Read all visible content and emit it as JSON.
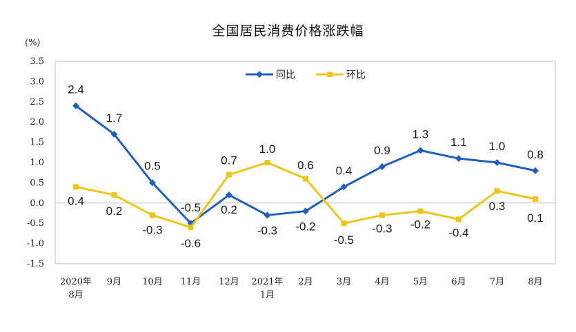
{
  "chart_data": {
    "type": "line",
    "title": "全国居民消费价格涨跌幅",
    "unit": "(%)",
    "categories": [
      [
        "2020年",
        "8月"
      ],
      [
        "9月"
      ],
      [
        "10月"
      ],
      [
        "11月"
      ],
      [
        "12月"
      ],
      [
        "2021年",
        "1月"
      ],
      [
        "2月"
      ],
      [
        "3月"
      ],
      [
        "4月"
      ],
      [
        "5月"
      ],
      [
        "6月"
      ],
      [
        "7月"
      ],
      [
        "8月"
      ]
    ],
    "ylim": [
      -1.5,
      3.5
    ],
    "yticks": [
      "3.5",
      "3.0",
      "2.5",
      "2.0",
      "1.5",
      "1.0",
      "0.5",
      "0.0",
      "-0.5",
      "-1.0",
      "-1.5"
    ],
    "legend_position": "top-center",
    "grid": false,
    "series": [
      {
        "name": "同比",
        "color": "#1f5fbf",
        "marker": "diamond",
        "values": [
          2.4,
          1.7,
          0.5,
          -0.5,
          0.2,
          -0.3,
          -0.2,
          0.4,
          0.9,
          1.3,
          1.1,
          1.0,
          0.8
        ],
        "labels": [
          "2.4",
          "1.7",
          "0.5",
          "-0.5",
          "0.2",
          "-0.3",
          "-0.2",
          "0.4",
          "0.9",
          "1.3",
          "1.1",
          "1.0",
          "0.8"
        ]
      },
      {
        "name": "环比",
        "color": "#f0c419",
        "marker": "square",
        "values": [
          0.4,
          0.2,
          -0.3,
          -0.6,
          0.7,
          1.0,
          0.6,
          -0.5,
          -0.3,
          -0.2,
          -0.4,
          0.3,
          0.1
        ],
        "labels": [
          "0.4",
          "0.2",
          "-0.3",
          "-0.6",
          "0.7",
          "1.0",
          "0.6",
          "-0.5",
          "-0.3",
          "-0.2",
          "-0.4",
          "0.3",
          "0.1"
        ]
      }
    ]
  }
}
